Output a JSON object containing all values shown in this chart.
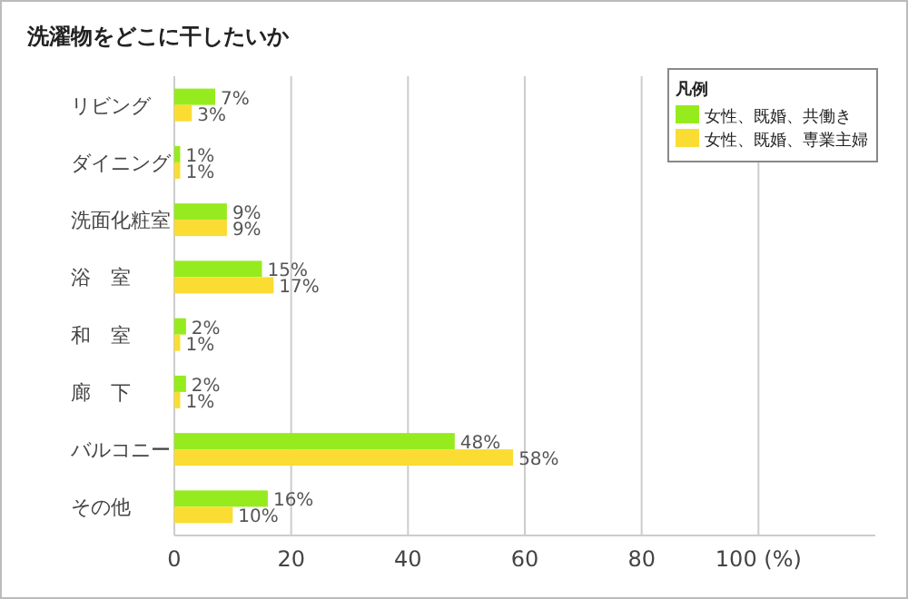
{
  "chart_data": {
    "type": "bar",
    "orientation": "horizontal",
    "title": "洗濯物をどこに干したいか",
    "legend_title": "凡例",
    "legend": "top right",
    "grid": "x",
    "categories": [
      "リビング",
      "ダイニング",
      "洗面化粧室",
      "浴　室",
      "和　室",
      "廊　下",
      "バルコニー",
      "その他"
    ],
    "xlim": [
      0,
      120
    ],
    "xticks": [
      0,
      20,
      40,
      60,
      80,
      {
        "value": 100,
        "label": "100 (%)"
      }
    ],
    "series": [
      {
        "name": "女性、既婚、共働き",
        "color": "#96eb1e",
        "values": [
          7,
          1,
          9,
          15,
          2,
          2,
          48,
          16
        ],
        "value_labels": [
          "7%",
          "1%",
          "9%",
          "15%",
          "2%",
          "2%",
          "48%",
          "16%"
        ]
      },
      {
        "name": "女性、既婚、専業主婦",
        "color": "#fadc32",
        "values": [
          3,
          1,
          9,
          17,
          1,
          1,
          58,
          10
        ],
        "value_labels": [
          "3%",
          "1%",
          "9%",
          "17%",
          "1%",
          "1%",
          "58%",
          "10%"
        ]
      }
    ]
  }
}
